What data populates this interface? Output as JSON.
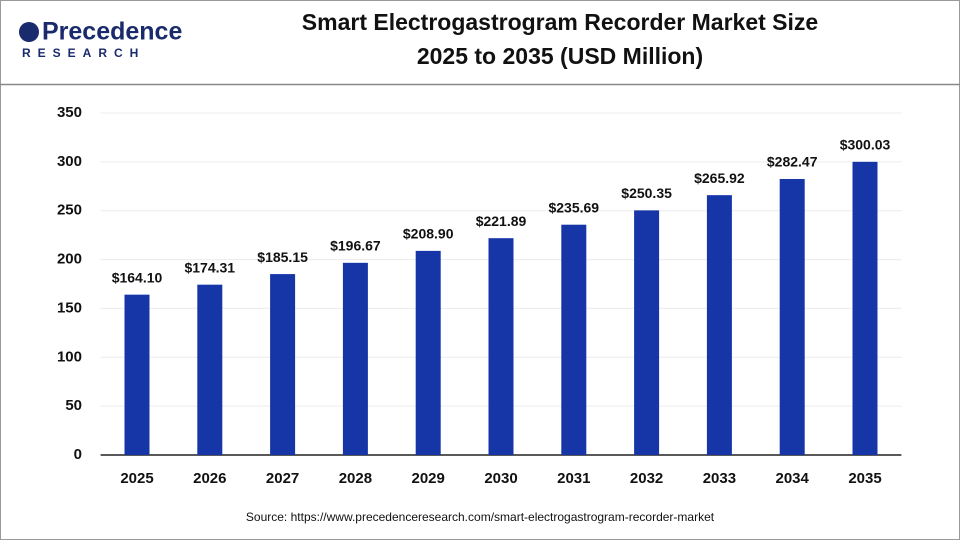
{
  "logo": {
    "name": "Precedence",
    "tagline": "RESEARCH"
  },
  "chart_data": {
    "type": "bar",
    "title": [
      "Smart Electrogastrogram Recorder Market Size",
      "2025 to 2035 (USD Million)"
    ],
    "categories": [
      "2025",
      "2026",
      "2027",
      "2028",
      "2029",
      "2030",
      "2031",
      "2032",
      "2033",
      "2034",
      "2035"
    ],
    "values": [
      164.1,
      174.31,
      185.15,
      196.67,
      208.9,
      221.89,
      235.69,
      250.35,
      265.92,
      282.47,
      300.03
    ],
    "value_labels": [
      "$164.10",
      "$174.31",
      "$185.15",
      "$196.67",
      "$208.90",
      "$221.89",
      "$235.69",
      "$250.35",
      "$265.92",
      "$282.47",
      "$300.03"
    ],
    "color": "#1636a8",
    "ylim": [
      0,
      350
    ],
    "yticks": [
      0,
      50,
      100,
      150,
      200,
      250,
      300,
      350
    ],
    "grid": true,
    "source": "Source: https://www.precedenceresearch.com/smart-electrogastrogram-recorder-market"
  }
}
